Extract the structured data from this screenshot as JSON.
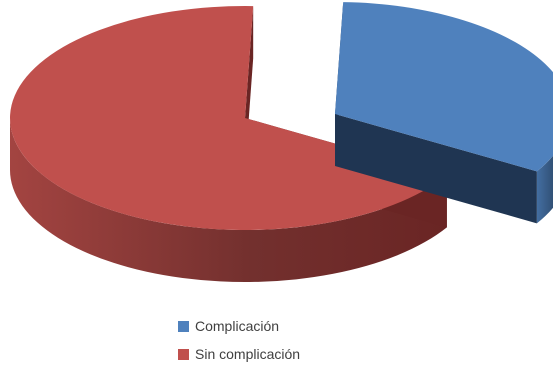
{
  "chart_data": {
    "type": "pie",
    "style": "3d-exploded",
    "series": [
      {
        "name": "Complicación",
        "value": 33,
        "color": "#4f81bd",
        "side_color": "#1f3552"
      },
      {
        "name": "Sin complicación",
        "value": 67,
        "color": "#c0504d",
        "side_color": "#6a2524"
      }
    ],
    "legend_position": "bottom"
  }
}
